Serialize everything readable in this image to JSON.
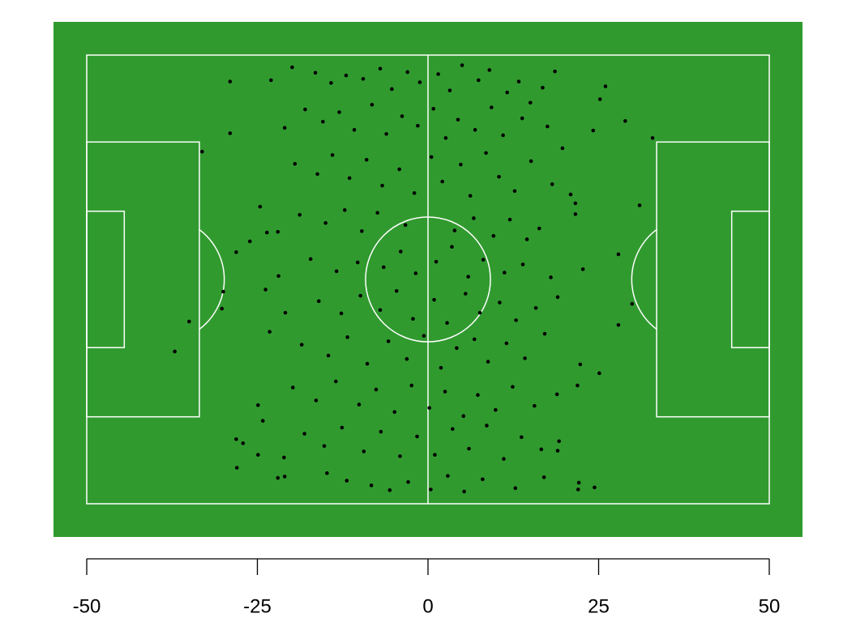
{
  "chart_data": {
    "type": "scatter",
    "x": [
      -29.0,
      -29.0,
      -33.1,
      -23.0,
      -21.0,
      -19.9,
      -24.6,
      -28.1,
      -26.1,
      -23.6,
      -22.0,
      -30.0,
      -30.2,
      -35.0,
      -37.1,
      -23.8,
      -21.9,
      -20.9,
      -23.2,
      -24.9,
      -24.2,
      -28.1,
      -27.1,
      -28.0,
      -24.9,
      -22.0,
      -21.0,
      -21.1,
      26.0,
      28.9,
      32.9,
      31.0,
      27.9,
      29.9,
      27.9,
      25.1,
      22.7,
      24.4,
      22.1,
      22.0,
      21.6,
      21.6,
      20.9,
      18.6,
      25.2,
      24.2,
      21.9,
      22.3,
      19.2,
      19.0,
      -16.5,
      -14.2,
      -12.0,
      -9.5,
      -7.0,
      -5.3,
      -3.0,
      -1.2,
      1.5,
      3.2,
      5.0,
      7.4,
      9.0,
      11.6,
      13.3,
      15.0,
      16.8,
      -18.0,
      -15.4,
      -13.0,
      -10.8,
      -8.2,
      -6.1,
      -3.8,
      -1.5,
      0.8,
      2.6,
      4.4,
      6.9,
      9.3,
      11.0,
      13.8,
      17.5,
      19.7,
      -19.5,
      -16.2,
      -14.0,
      -11.5,
      -9.0,
      -6.7,
      -4.2,
      -2.0,
      0.5,
      2.1,
      4.8,
      6.2,
      8.5,
      10.4,
      12.7,
      15.1,
      18.2,
      -18.8,
      -15.0,
      -12.2,
      -9.7,
      -7.4,
      -3.3,
      3.9,
      6.7,
      9.6,
      12.0,
      14.5,
      16.3,
      -17.2,
      -13.4,
      -10.3,
      -6.5,
      -4.0,
      -1.8,
      1.2,
      3.5,
      5.9,
      8.1,
      11.2,
      13.9,
      18.0,
      -16.0,
      -12.7,
      -9.9,
      -7.0,
      -4.6,
      -2.2,
      0.9,
      2.8,
      5.5,
      7.6,
      10.5,
      12.9,
      15.8,
      19.0,
      -18.5,
      -14.6,
      -11.8,
      -8.9,
      -5.8,
      -3.1,
      -0.6,
      1.9,
      4.2,
      6.8,
      8.8,
      11.5,
      14.2,
      17.1,
      -19.8,
      -16.4,
      -13.5,
      -10.1,
      -7.6,
      -4.9,
      -2.4,
      0.2,
      2.5,
      5.2,
      7.3,
      9.9,
      12.4,
      15.6,
      18.9,
      -18.1,
      -15.2,
      -12.6,
      -9.4,
      -6.9,
      -4.1,
      -1.6,
      1.0,
      3.6,
      6.0,
      8.6,
      11.1,
      13.7,
      16.6,
      -14.8,
      -11.9,
      -8.3,
      -5.6,
      -2.9,
      0.4,
      2.9,
      5.3,
      8.0,
      12.8,
      17.0
    ],
    "values": [
      29.1,
      21.5,
      18.8,
      29.3,
      22.3,
      31.2,
      10.7,
      4.0,
      5.6,
      6.9,
      7.0,
      -1.8,
      -4.3,
      -6.2,
      -10.6,
      -1.5,
      0.5,
      -4.9,
      -7.7,
      -18.5,
      -20.8,
      -23.5,
      -24.1,
      -27.7,
      -25.8,
      -29.2,
      -29.0,
      -26.2,
      28.4,
      23.3,
      20.8,
      10.9,
      3.7,
      -3.6,
      -6.7,
      -13.8,
      1.5,
      -30.6,
      -29.9,
      -30.9,
      11.2,
      9.6,
      12.5,
      30.6,
      26.5,
      21.9,
      -15.6,
      -12.5,
      -23.8,
      -25.2,
      30.4,
      28.9,
      30.0,
      29.5,
      31.0,
      28.0,
      30.5,
      29.0,
      30.2,
      27.8,
      31.5,
      29.3,
      30.8,
      27.5,
      29.1,
      26.0,
      28.2,
      25.0,
      23.2,
      24.6,
      22.0,
      25.7,
      21.4,
      24.0,
      22.6,
      25.1,
      20.8,
      23.5,
      22.0,
      25.3,
      21.2,
      23.7,
      22.5,
      19.3,
      17.0,
      15.5,
      18.3,
      14.9,
      17.6,
      13.8,
      16.2,
      12.7,
      18.0,
      14.4,
      16.9,
      12.3,
      18.6,
      15.1,
      13.0,
      17.4,
      14.0,
      9.5,
      8.3,
      10.2,
      7.1,
      9.8,
      8.0,
      7.2,
      9.0,
      6.4,
      8.8,
      5.9,
      7.5,
      3.0,
      1.2,
      2.5,
      1.8,
      4.1,
      0.9,
      2.6,
      4.8,
      0.4,
      2.9,
      1.0,
      2.2,
      0.3,
      -3.2,
      -5.0,
      -2.4,
      -4.5,
      -1.7,
      -5.8,
      -3.0,
      -6.4,
      -2.1,
      -4.9,
      -3.4,
      -6.0,
      -4.2,
      -2.6,
      -9.6,
      -11.2,
      -8.5,
      -12.4,
      -9.1,
      -11.7,
      -8.3,
      -13.0,
      -10.1,
      -8.8,
      -12.1,
      -9.4,
      -11.6,
      -8.0,
      -15.9,
      -17.8,
      -15.0,
      -18.4,
      -16.2,
      -19.5,
      -15.6,
      -18.9,
      -16.5,
      -20.1,
      -17.0,
      -19.2,
      -15.8,
      -18.6,
      -16.9,
      -22.7,
      -24.5,
      -21.8,
      -25.3,
      -22.4,
      -26.0,
      -23.1,
      -25.8,
      -22.0,
      -24.9,
      -21.5,
      -26.4,
      -23.2,
      -25.0,
      -28.5,
      -29.6,
      -30.3,
      -31.0,
      -29.8,
      -30.9,
      -28.9,
      -31.2,
      -29.4,
      -30.7,
      -29.1
    ],
    "color": "#000000",
    "background": "#319a2f",
    "xlim": [
      -50,
      50
    ],
    "xticks": [
      -50,
      -25,
      0,
      25,
      50
    ],
    "ylim": [
      -33,
      33
    ]
  }
}
